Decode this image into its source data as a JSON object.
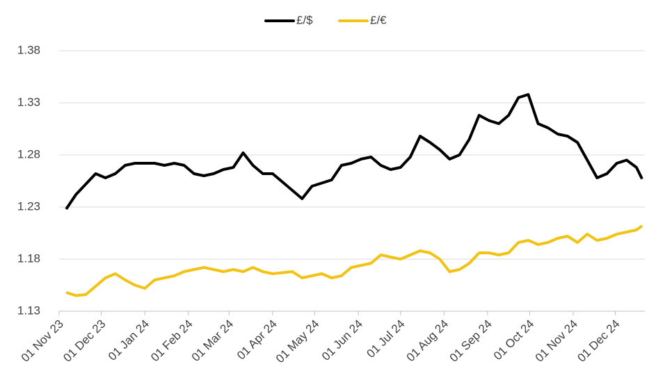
{
  "chart_data": {
    "type": "line",
    "x": [
      "2023-11-06",
      "2023-11-13",
      "2023-11-20",
      "2023-11-27",
      "2023-12-04",
      "2023-12-11",
      "2023-12-18",
      "2023-12-25",
      "2024-01-01",
      "2024-01-08",
      "2024-01-15",
      "2024-01-22",
      "2024-01-29",
      "2024-02-05",
      "2024-02-12",
      "2024-02-19",
      "2024-02-26",
      "2024-03-04",
      "2024-03-11",
      "2024-03-18",
      "2024-03-25",
      "2024-04-01",
      "2024-04-08",
      "2024-04-15",
      "2024-04-22",
      "2024-04-29",
      "2024-05-06",
      "2024-05-13",
      "2024-05-20",
      "2024-05-27",
      "2024-06-03",
      "2024-06-10",
      "2024-06-17",
      "2024-06-24",
      "2024-07-01",
      "2024-07-08",
      "2024-07-15",
      "2024-07-22",
      "2024-07-29",
      "2024-08-05",
      "2024-08-12",
      "2024-08-19",
      "2024-08-26",
      "2024-09-02",
      "2024-09-09",
      "2024-09-16",
      "2024-09-23",
      "2024-09-30",
      "2024-10-07",
      "2024-10-14",
      "2024-10-21",
      "2024-10-28",
      "2024-11-04",
      "2024-11-11",
      "2024-11-18",
      "2024-11-25",
      "2024-12-02",
      "2024-12-09",
      "2024-12-16",
      "2024-12-20"
    ],
    "series": [
      {
        "name": "£/$",
        "color": "#000000",
        "values": [
          1.228,
          1.242,
          1.252,
          1.262,
          1.258,
          1.262,
          1.27,
          1.272,
          1.272,
          1.272,
          1.27,
          1.272,
          1.27,
          1.262,
          1.26,
          1.262,
          1.266,
          1.268,
          1.282,
          1.27,
          1.262,
          1.262,
          1.254,
          1.246,
          1.238,
          1.25,
          1.253,
          1.256,
          1.27,
          1.272,
          1.276,
          1.278,
          1.27,
          1.266,
          1.268,
          1.278,
          1.298,
          1.292,
          1.285,
          1.276,
          1.28,
          1.295,
          1.318,
          1.313,
          1.31,
          1.318,
          1.335,
          1.338,
          1.31,
          1.306,
          1.3,
          1.298,
          1.292,
          1.275,
          1.258,
          1.262,
          1.272,
          1.275,
          1.268,
          1.257
        ]
      },
      {
        "name": "£/€",
        "color": "#f2c314",
        "values": [
          1.148,
          1.145,
          1.146,
          1.154,
          1.162,
          1.166,
          1.16,
          1.155,
          1.152,
          1.16,
          1.162,
          1.164,
          1.168,
          1.17,
          1.172,
          1.17,
          1.168,
          1.17,
          1.168,
          1.172,
          1.168,
          1.166,
          1.167,
          1.168,
          1.162,
          1.164,
          1.166,
          1.162,
          1.164,
          1.172,
          1.174,
          1.176,
          1.184,
          1.182,
          1.18,
          1.184,
          1.188,
          1.186,
          1.18,
          1.168,
          1.17,
          1.176,
          1.186,
          1.186,
          1.184,
          1.186,
          1.196,
          1.198,
          1.194,
          1.196,
          1.2,
          1.202,
          1.196,
          1.204,
          1.198,
          1.2,
          1.204,
          1.206,
          1.208,
          1.212
        ]
      }
    ],
    "xlim": [
      "2023-11-01",
      "2024-12-22"
    ],
    "xticks": [
      {
        "value": "2023-11-01",
        "label": "01 Nov 23"
      },
      {
        "value": "2023-12-01",
        "label": "01 Dec 23"
      },
      {
        "value": "2024-01-01",
        "label": "01 Jan 24"
      },
      {
        "value": "2024-02-01",
        "label": "01 Feb 24"
      },
      {
        "value": "2024-03-01",
        "label": "01 Mar 24"
      },
      {
        "value": "2024-04-01",
        "label": "01 Apr 24"
      },
      {
        "value": "2024-05-01",
        "label": "01 May 24"
      },
      {
        "value": "2024-06-01",
        "label": "01 Jun 24"
      },
      {
        "value": "2024-07-01",
        "label": "01 Jul 24"
      },
      {
        "value": "2024-08-01",
        "label": "01 Aug 24"
      },
      {
        "value": "2024-09-01",
        "label": "01 Sep 24"
      },
      {
        "value": "2024-10-01",
        "label": "01 Oct 24"
      },
      {
        "value": "2024-11-01",
        "label": "01 Nov 24"
      },
      {
        "value": "2024-12-01",
        "label": "01 Dec 24"
      }
    ],
    "ylim": [
      1.13,
      1.38
    ],
    "yticks": [
      1.13,
      1.18,
      1.23,
      1.28,
      1.33,
      1.38
    ],
    "grid": true,
    "legend": "top"
  }
}
